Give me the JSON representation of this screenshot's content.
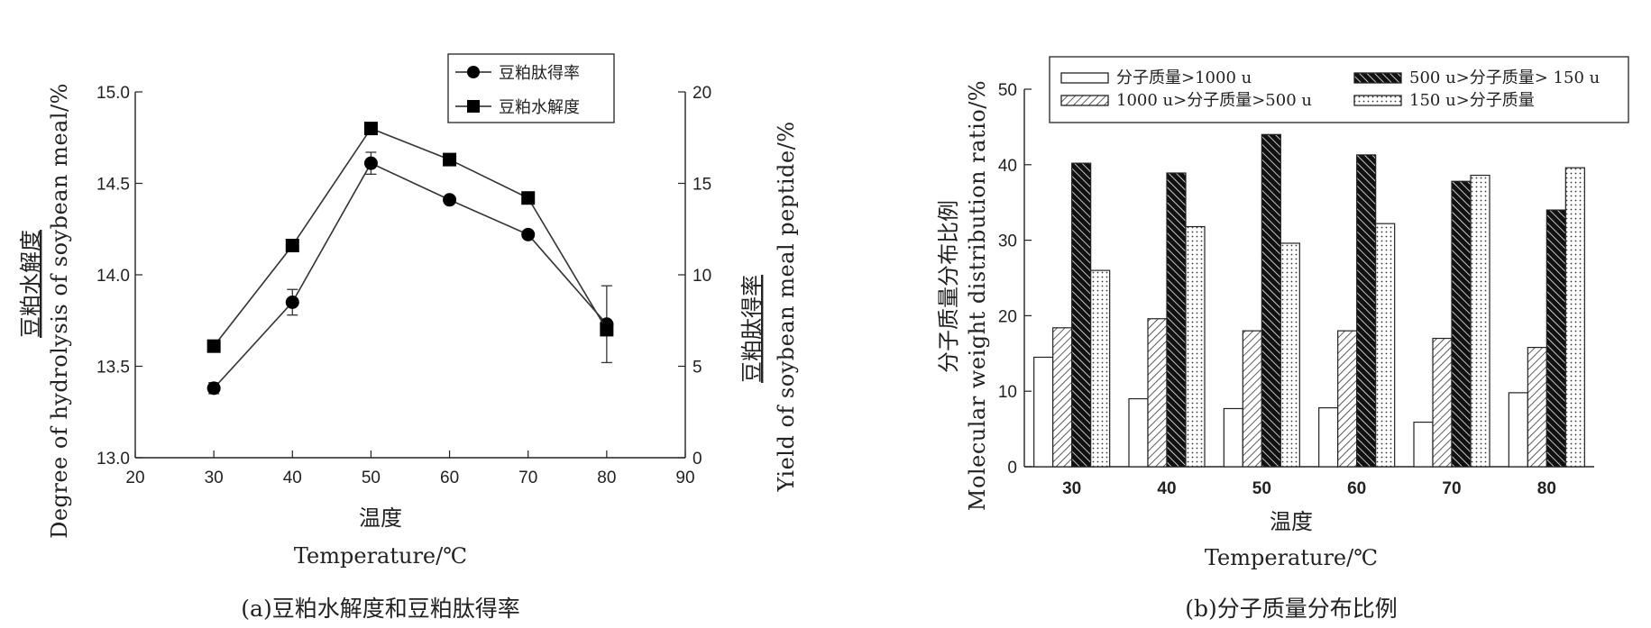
{
  "chart_data": [
    {
      "type": "line",
      "caption": "(a)豆粕水解度和豆粕肽得率",
      "x": [
        30,
        40,
        50,
        60,
        70,
        80
      ],
      "xlim": [
        20,
        90
      ],
      "xticks": [
        20,
        30,
        40,
        50,
        60,
        70,
        80,
        90
      ],
      "xlabel_cn": "温度",
      "xlabel_en": "Temperature/℃",
      "ylabel_left_cn": "豆粕水解度",
      "ylabel_left_en": "Degree of hydrolysis of soybean meal/%",
      "ylim_left": [
        13.0,
        15.0
      ],
      "yticks_left": [
        "13.0",
        "13.5",
        "14.0",
        "14.5",
        "15.0"
      ],
      "ylabel_right_cn": "豆粕肽得率",
      "ylabel_right_en": "Yield of soybean meal peptide/%",
      "ylim_right": [
        0,
        20
      ],
      "yticks_right": [
        "0",
        "5",
        "10",
        "15",
        "20"
      ],
      "legend_position": "top-right",
      "series": [
        {
          "name": "豆粕肽得率",
          "marker": "circle",
          "axis": "left",
          "values": [
            13.38,
            13.85,
            14.61,
            14.41,
            14.22,
            13.73
          ],
          "errors": [
            0.03,
            0.07,
            0.06,
            0.0,
            0.0,
            0.21
          ]
        },
        {
          "name": "豆粕水解度",
          "marker": "square",
          "axis": "left",
          "values": [
            13.61,
            14.16,
            14.8,
            14.63,
            14.42,
            13.7
          ],
          "errors": [
            0,
            0,
            0,
            0,
            0,
            0
          ]
        }
      ],
      "grid": false
    },
    {
      "type": "bar",
      "caption": "(b)分子质量分布比例",
      "categories": [
        "30",
        "40",
        "50",
        "60",
        "70",
        "80"
      ],
      "xlabel_cn": "温度",
      "xlabel_en": "Temperature/℃",
      "ylabel_cn": "分子质量分布比例",
      "ylabel_en": "Molecular weight distribution ratio/%",
      "ylim": [
        0,
        50
      ],
      "yticks": [
        "0",
        "10",
        "20",
        "30",
        "40",
        "50"
      ],
      "legend_position": "top",
      "series": [
        {
          "name": "分子质量>1000 u",
          "pattern": "white",
          "values": [
            14.5,
            9.0,
            7.7,
            7.8,
            5.9,
            9.8
          ]
        },
        {
          "name": "1000 u>分子质量>500 u",
          "pattern": "light-hatch",
          "values": [
            18.4,
            19.6,
            18.0,
            18.0,
            17.0,
            15.8
          ]
        },
        {
          "name": "500 u>分子质量> 150 u",
          "pattern": "dark-hatch",
          "values": [
            40.2,
            38.9,
            44.0,
            41.3,
            37.8,
            34.0
          ]
        },
        {
          "name": "150 u>分子质量",
          "pattern": "dots",
          "values": [
            26.0,
            31.8,
            29.6,
            32.2,
            38.6,
            39.6
          ]
        }
      ],
      "grid": false
    }
  ]
}
